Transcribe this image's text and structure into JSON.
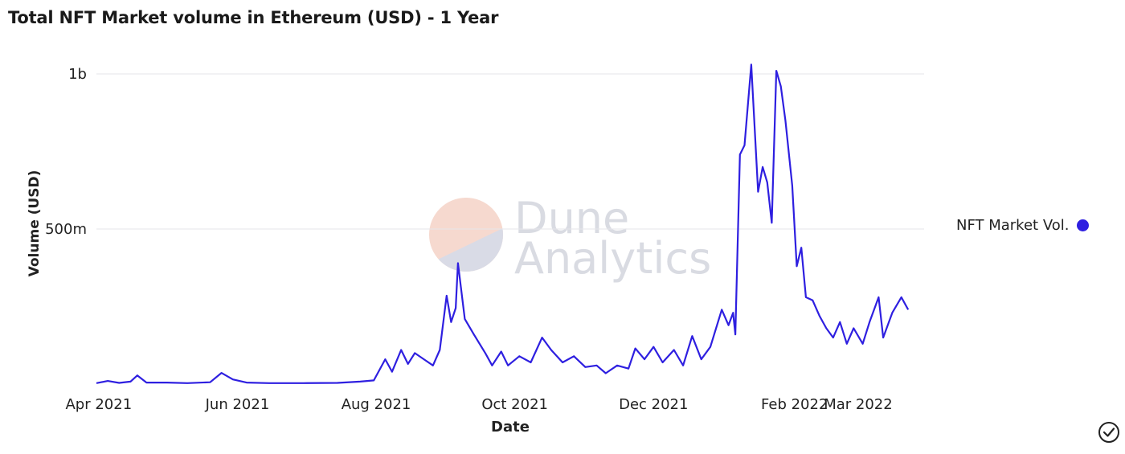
{
  "header": {
    "title": "Total NFT Market volume in Ethereum (USD) - 1 Year"
  },
  "watermark": {
    "line1": "Dune",
    "line2": "Analytics"
  },
  "legend": {
    "label": "NFT Market Vol.",
    "color": "#2e1fe0"
  },
  "chart_data": {
    "type": "line",
    "title": "Total NFT Market volume in Ethereum (USD) - 1 Year",
    "xlabel": "Date",
    "ylabel": "Volume (USD)",
    "x_ticks": [
      "Apr 2021",
      "Jun 2021",
      "Aug 2021",
      "Oct 2021",
      "Dec 2021",
      "Feb 2022",
      "Mar 2022"
    ],
    "x_tick_dates": [
      "2021-04-01",
      "2021-06-01",
      "2021-08-01",
      "2021-10-01",
      "2021-12-01",
      "2022-02-01",
      "2022-03-01"
    ],
    "y_ticks": [
      "500m",
      "1b"
    ],
    "y_tick_values": [
      500000000,
      1000000000
    ],
    "xlim": [
      "2021-03-31",
      "2022-03-30"
    ],
    "ylim": [
      0,
      1000000000
    ],
    "grid": true,
    "legend_position": "right",
    "series": [
      {
        "name": "NFT Market Vol.",
        "color": "#2e1fe0",
        "points": [
          [
            "2021-03-31",
            3000000
          ],
          [
            "2021-04-05",
            10000000
          ],
          [
            "2021-04-10",
            4000000
          ],
          [
            "2021-04-15",
            8000000
          ],
          [
            "2021-04-18",
            28000000
          ],
          [
            "2021-04-22",
            5000000
          ],
          [
            "2021-05-01",
            5000000
          ],
          [
            "2021-05-10",
            3000000
          ],
          [
            "2021-05-20",
            6000000
          ],
          [
            "2021-05-25",
            36000000
          ],
          [
            "2021-05-30",
            15000000
          ],
          [
            "2021-06-05",
            5000000
          ],
          [
            "2021-06-15",
            3000000
          ],
          [
            "2021-06-30",
            3000000
          ],
          [
            "2021-07-15",
            4000000
          ],
          [
            "2021-07-25",
            8000000
          ],
          [
            "2021-07-31",
            12000000
          ],
          [
            "2021-08-05",
            80000000
          ],
          [
            "2021-08-08",
            40000000
          ],
          [
            "2021-08-12",
            110000000
          ],
          [
            "2021-08-15",
            65000000
          ],
          [
            "2021-08-18",
            100000000
          ],
          [
            "2021-08-22",
            80000000
          ],
          [
            "2021-08-26",
            60000000
          ],
          [
            "2021-08-29",
            110000000
          ],
          [
            "2021-09-01",
            285000000
          ],
          [
            "2021-09-03",
            200000000
          ],
          [
            "2021-09-05",
            245000000
          ],
          [
            "2021-09-06",
            390000000
          ],
          [
            "2021-09-09",
            210000000
          ],
          [
            "2021-09-13",
            160000000
          ],
          [
            "2021-09-18",
            100000000
          ],
          [
            "2021-09-21",
            60000000
          ],
          [
            "2021-09-25",
            105000000
          ],
          [
            "2021-09-28",
            60000000
          ],
          [
            "2021-10-03",
            90000000
          ],
          [
            "2021-10-08",
            70000000
          ],
          [
            "2021-10-13",
            150000000
          ],
          [
            "2021-10-17",
            110000000
          ],
          [
            "2021-10-22",
            70000000
          ],
          [
            "2021-10-27",
            90000000
          ],
          [
            "2021-11-01",
            55000000
          ],
          [
            "2021-11-06",
            60000000
          ],
          [
            "2021-11-10",
            35000000
          ],
          [
            "2021-11-15",
            60000000
          ],
          [
            "2021-11-20",
            50000000
          ],
          [
            "2021-11-23",
            115000000
          ],
          [
            "2021-11-27",
            80000000
          ],
          [
            "2021-12-01",
            120000000
          ],
          [
            "2021-12-05",
            70000000
          ],
          [
            "2021-12-10",
            110000000
          ],
          [
            "2021-12-14",
            60000000
          ],
          [
            "2021-12-18",
            155000000
          ],
          [
            "2021-12-22",
            80000000
          ],
          [
            "2021-12-26",
            120000000
          ],
          [
            "2021-12-31",
            240000000
          ],
          [
            "2022-01-03",
            190000000
          ],
          [
            "2022-01-05",
            230000000
          ],
          [
            "2022-01-06",
            160000000
          ],
          [
            "2022-01-08",
            740000000
          ],
          [
            "2022-01-10",
            770000000
          ],
          [
            "2022-01-13",
            1030000000
          ],
          [
            "2022-01-16",
            620000000
          ],
          [
            "2022-01-18",
            700000000
          ],
          [
            "2022-01-20",
            650000000
          ],
          [
            "2022-01-22",
            520000000
          ],
          [
            "2022-01-24",
            1010000000
          ],
          [
            "2022-01-26",
            960000000
          ],
          [
            "2022-01-28",
            850000000
          ],
          [
            "2022-01-31",
            640000000
          ],
          [
            "2022-02-02",
            380000000
          ],
          [
            "2022-02-04",
            440000000
          ],
          [
            "2022-02-06",
            280000000
          ],
          [
            "2022-02-09",
            270000000
          ],
          [
            "2022-02-12",
            220000000
          ],
          [
            "2022-02-15",
            180000000
          ],
          [
            "2022-02-18",
            150000000
          ],
          [
            "2022-02-21",
            200000000
          ],
          [
            "2022-02-24",
            130000000
          ],
          [
            "2022-02-27",
            180000000
          ],
          [
            "2022-03-03",
            130000000
          ],
          [
            "2022-03-06",
            200000000
          ],
          [
            "2022-03-10",
            280000000
          ],
          [
            "2022-03-12",
            150000000
          ],
          [
            "2022-03-16",
            230000000
          ],
          [
            "2022-03-20",
            280000000
          ],
          [
            "2022-03-23",
            240000000
          ]
        ]
      }
    ]
  }
}
